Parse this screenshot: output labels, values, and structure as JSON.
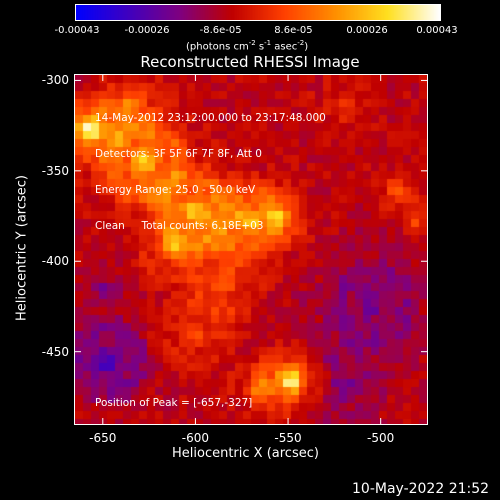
{
  "colorbar": {
    "ticks": [
      "-0.00043",
      "-0.00026",
      "-8.6e-05",
      "8.6e-05",
      "0.00026",
      "0.00043"
    ],
    "unit_main": "(photons cm",
    "unit_exp1": "-2",
    "unit_mid": " s",
    "unit_exp2": "-1",
    "unit_tail": " asec",
    "unit_exp3": "-2",
    "unit_close": ")"
  },
  "info_lines": [
    "14-May-2012 23:12:00.000 to 23:17:48.000",
    "Detectors: 3F 5F 6F 7F 8F, Att 0",
    "Energy Range: 25.0 - 50.0 keV",
    "Clean     Total counts: 6.18E+03"
  ],
  "peak_label": "Position of Peak = [-657,-327]",
  "footer_timestamp": "10-May-2022 21:52",
  "chart_data": {
    "type": "heatmap",
    "title": "Reconstructed RHESSI Image",
    "xlabel": "Heliocentric X (arcsec)",
    "ylabel": "Heliocentric Y (arcsec)",
    "xlim": [
      -665,
      -475
    ],
    "ylim": [
      -490,
      -297
    ],
    "x_ticks": [
      -650,
      -600,
      -550,
      -500
    ],
    "y_ticks": [
      -300,
      -350,
      -400,
      -450
    ],
    "x_tick_labels": [
      "-650",
      "-600",
      "-550",
      "-500"
    ],
    "y_tick_labels": [
      "-300",
      "-350",
      "-400",
      "-450"
    ],
    "colorbar_range": [
      -0.00043,
      0.00043
    ],
    "colormap": [
      "#0000ff",
      "#4000c0",
      "#800080",
      "#c00000",
      "#ff4000",
      "#ff9000",
      "#ffe020",
      "#ffffff"
    ],
    "grid": false,
    "sources": [
      {
        "x": -657,
        "y": -327,
        "sigma": 9,
        "value": 0.00043
      },
      {
        "x": -628,
        "y": -345,
        "sigma": 16,
        "value": 0.0003
      },
      {
        "x": -600,
        "y": -372,
        "sigma": 14,
        "value": 0.00028
      },
      {
        "x": -572,
        "y": -378,
        "sigma": 13,
        "value": 0.00026
      },
      {
        "x": -556,
        "y": -376,
        "sigma": 9,
        "value": 0.00024
      },
      {
        "x": -612,
        "y": -392,
        "sigma": 10,
        "value": 0.00022
      },
      {
        "x": -635,
        "y": -315,
        "sigma": 10,
        "value": 0.0002
      },
      {
        "x": -585,
        "y": -410,
        "sigma": 12,
        "value": 0.00016
      },
      {
        "x": -600,
        "y": -440,
        "sigma": 14,
        "value": 0.00012
      },
      {
        "x": -548,
        "y": -466,
        "sigma": 9,
        "value": 0.0004
      },
      {
        "x": -565,
        "y": -470,
        "sigma": 8,
        "value": 0.00018
      },
      {
        "x": -490,
        "y": -362,
        "sigma": 7,
        "value": 0.00018
      },
      {
        "x": -481,
        "y": -378,
        "sigma": 6,
        "value": 0.00012
      },
      {
        "x": -520,
        "y": -315,
        "sigma": 10,
        "value": 8e-05
      },
      {
        "x": -647,
        "y": -455,
        "sigma": 14,
        "value": -0.00022
      },
      {
        "x": -650,
        "y": -415,
        "sigma": 8,
        "value": -0.0001
      },
      {
        "x": -505,
        "y": -425,
        "sigma": 20,
        "value": -0.00014
      },
      {
        "x": -520,
        "y": -470,
        "sigma": 14,
        "value": -0.00012
      }
    ]
  }
}
